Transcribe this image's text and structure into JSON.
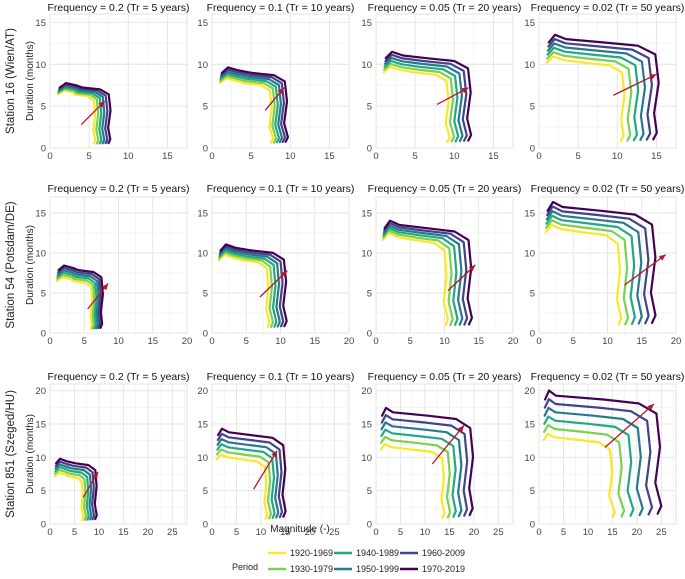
{
  "axes": {
    "xlabel": "Magnitude (-)",
    "ylabel": "Duration (months)"
  },
  "legend": {
    "title": "Period",
    "items": [
      {
        "label": "1920-1969",
        "color": "#fde725"
      },
      {
        "label": "1930-1979",
        "color": "#7ad151"
      },
      {
        "label": "1940-1989",
        "color": "#22a884"
      },
      {
        "label": "1950-1999",
        "color": "#2a788e"
      },
      {
        "label": "1960-2009",
        "color": "#414487"
      },
      {
        "label": "1970-2019",
        "color": "#440154"
      }
    ]
  },
  "arrow_color": "#b2182b",
  "chart_data": [
    {
      "type": "line",
      "station": "Station 16 (Wien/AT)",
      "xlim": [
        0,
        17.5
      ],
      "ylim": [
        0,
        16
      ],
      "xticks": [
        0,
        5,
        10,
        15
      ],
      "yticks": [
        0,
        5,
        10,
        15
      ],
      "panels": [
        {
          "title": "Frequency = 0.2 (Tr = 5 years)",
          "base": {
            "x0": 1,
            "h": 6.6,
            "xk": 5.6,
            "xb": 5.8
          },
          "dx": 0.38,
          "dh": 0.17,
          "arrow": [
            4.0,
            2.8,
            7.0,
            5.6
          ]
        },
        {
          "title": "Frequency = 0.1 (Tr = 10 years)",
          "base": {
            "x0": 1,
            "h": 8.0,
            "xk": 7.4,
            "xb": 7.8
          },
          "dx": 0.38,
          "dh": 0.25,
          "arrow": [
            6.8,
            4.5,
            9.2,
            7.2
          ]
        },
        {
          "title": "Frequency = 0.05 (Tr = 20 years)",
          "base": {
            "x0": 1,
            "h": 9.3,
            "xk": 9.0,
            "xb": 9.4
          },
          "dx": 0.55,
          "dh": 0.35,
          "arrow": [
            7.8,
            5.2,
            11.8,
            7.2
          ]
        },
        {
          "title": "Frequency = 0.02 (Tr = 50 years)",
          "base": {
            "x0": 1,
            "h": 10.5,
            "xk": 10.6,
            "xb": 10.8
          },
          "dx": 0.85,
          "dh": 0.5,
          "arrow": [
            9.5,
            6.3,
            15.0,
            8.8
          ]
        }
      ]
    },
    {
      "type": "line",
      "station": "Station 54 (Potsdam/DE)",
      "xlim": [
        0,
        20
      ],
      "ylim": [
        0,
        17
      ],
      "xticks": [
        0,
        5,
        10,
        15,
        20
      ],
      "yticks": [
        0,
        5,
        10,
        15
      ],
      "panels": [
        {
          "title": "Frequency = 0.2 (Tr = 5 years)",
          "base": {
            "x0": 1,
            "h": 6.7,
            "xk": 6.0,
            "xb": 6.1
          },
          "dx": 0.3,
          "dh": 0.28,
          "arrow": [
            5.5,
            3.0,
            8.5,
            6.2
          ]
        },
        {
          "title": "Frequency = 0.1 (Tr = 10 years)",
          "base": {
            "x0": 1,
            "h": 9.4,
            "xk": 8.0,
            "xb": 8.4
          },
          "dx": 0.5,
          "dh": 0.25,
          "arrow": [
            7.0,
            4.5,
            11.0,
            7.8
          ]
        },
        {
          "title": "Frequency = 0.05 (Tr = 20 years)",
          "base": {
            "x0": 1,
            "h": 12.0,
            "xk": 10.0,
            "xb": 10.5
          },
          "dx": 0.7,
          "dh": 0.3,
          "arrow": [
            10.5,
            5.3,
            14.5,
            8.5
          ]
        },
        {
          "title": "Frequency = 0.02 (Tr = 50 years)",
          "base": {
            "x0": 1,
            "h": 13.0,
            "xk": 11.5,
            "xb": 12.0
          },
          "dx": 1.0,
          "dh": 0.55,
          "arrow": [
            12.5,
            6.0,
            18.5,
            9.8
          ]
        }
      ]
    },
    {
      "type": "line",
      "station": "Station 851 (Szeged/HU)",
      "xlim": [
        0,
        28
      ],
      "ylim": [
        0,
        21
      ],
      "xticks": [
        0,
        5,
        10,
        15,
        20,
        25
      ],
      "yticks": [
        0,
        5,
        10,
        15,
        20
      ],
      "panels": [
        {
          "title": "Frequency = 0.2 (Tr = 5 years)",
          "base": {
            "x0": 1,
            "h": 7.4,
            "xk": 6.5,
            "xb": 6.8
          },
          "dx": 0.55,
          "dh": 0.4,
          "arrow": [
            6.8,
            4.0,
            9.8,
            7.8
          ]
        },
        {
          "title": "Frequency = 0.1 (Tr = 10 years)",
          "base": {
            "x0": 1,
            "h": 10.0,
            "xk": 10.8,
            "xb": 11.3
          },
          "dx": 0.75,
          "dh": 0.75,
          "arrow": [
            8.5,
            5.2,
            13.3,
            11.0
          ]
        },
        {
          "title": "Frequency = 0.05 (Tr = 20 years)",
          "base": {
            "x0": 1,
            "h": 11.5,
            "xk": 13.5,
            "xb": 14.0
          },
          "dx": 1.15,
          "dh": 1.05,
          "arrow": [
            11.5,
            9.0,
            18.0,
            14.8
          ]
        },
        {
          "title": "Frequency = 0.02 (Tr = 50 years)",
          "base": {
            "x0": 1,
            "h": 13.0,
            "xk": 14.5,
            "xb": 15.5
          },
          "dx": 1.9,
          "dh": 1.25,
          "arrow": [
            13.5,
            11.5,
            23.5,
            18.0
          ]
        }
      ]
    }
  ]
}
